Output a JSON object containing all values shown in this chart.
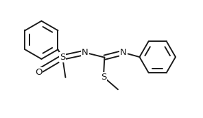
{
  "bg_color": "#ffffff",
  "line_color": "#1a1a1a",
  "line_width": 1.4,
  "font_size": 9.5,
  "fig_width": 2.96,
  "fig_height": 1.72,
  "dpi": 100,
  "xlim": [
    0,
    10
  ],
  "ylim": [
    0,
    5.8
  ]
}
